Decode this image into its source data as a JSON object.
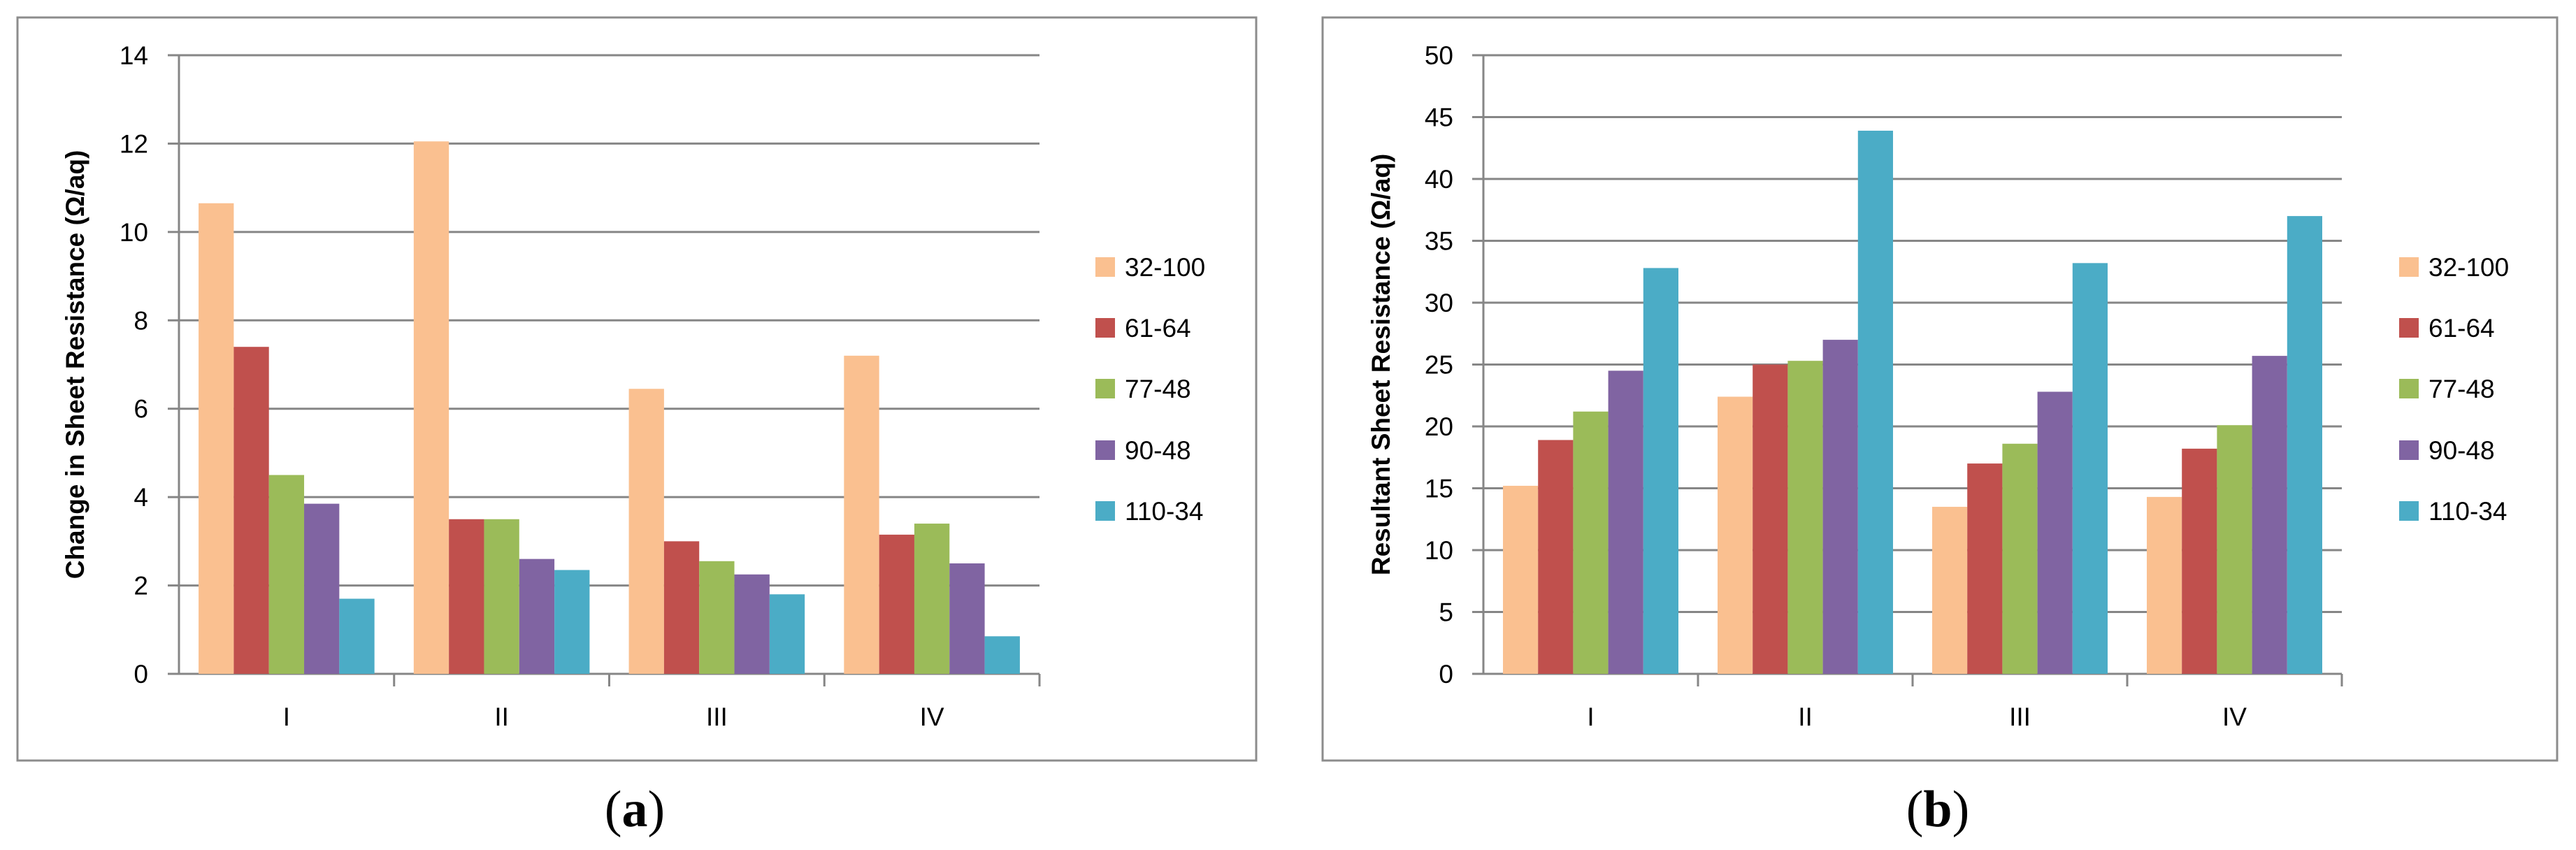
{
  "chart_data": [
    {
      "id": "a",
      "type": "bar",
      "ylabel": "Change in Sheet Resistance  (Ω/aq)",
      "ylim": [
        0,
        14
      ],
      "ytick_step": 2,
      "yticks": [
        "0",
        "2",
        "4",
        "6",
        "8",
        "10",
        "12",
        "14"
      ],
      "categories": [
        "I",
        "II",
        "III",
        "IV"
      ],
      "grid": true,
      "legend_position": "right",
      "series": [
        {
          "name": "32-100",
          "color": "#FAC090",
          "values": [
            10.65,
            12.05,
            6.45,
            7.2
          ]
        },
        {
          "name": "61-64",
          "color": "#C0504D",
          "values": [
            7.4,
            3.5,
            3.0,
            3.15
          ]
        },
        {
          "name": "77-48",
          "color": "#9BBB59",
          "values": [
            4.5,
            3.5,
            2.55,
            3.4
          ]
        },
        {
          "name": "90-48",
          "color": "#8064A2",
          "values": [
            3.85,
            2.6,
            2.25,
            2.5
          ]
        },
        {
          "name": "110-34",
          "color": "#4BACC6",
          "values": [
            1.7,
            2.35,
            1.8,
            0.85
          ]
        }
      ],
      "caption_label": "a"
    },
    {
      "id": "b",
      "type": "bar",
      "ylabel": "Resultant Sheet  Resistance  (Ω/aq)",
      "ylim": [
        0,
        50
      ],
      "ytick_step": 5,
      "yticks": [
        "0",
        "5",
        "10",
        "15",
        "20",
        "25",
        "30",
        "35",
        "40",
        "45",
        "50"
      ],
      "categories": [
        "I",
        "II",
        "III",
        "IV"
      ],
      "grid": true,
      "legend_position": "right",
      "series": [
        {
          "name": "32-100",
          "color": "#FAC090",
          "values": [
            15.2,
            22.4,
            13.5,
            14.3
          ]
        },
        {
          "name": "61-64",
          "color": "#C0504D",
          "values": [
            18.9,
            25.0,
            17.0,
            18.2
          ]
        },
        {
          "name": "77-48",
          "color": "#9BBB59",
          "values": [
            21.2,
            25.3,
            18.6,
            20.1
          ]
        },
        {
          "name": "90-48",
          "color": "#8064A2",
          "values": [
            24.5,
            27.0,
            22.8,
            25.7
          ]
        },
        {
          "name": "110-34",
          "color": "#4BACC6",
          "values": [
            32.8,
            43.9,
            33.2,
            37.0
          ]
        }
      ],
      "caption_label": "b"
    }
  ]
}
